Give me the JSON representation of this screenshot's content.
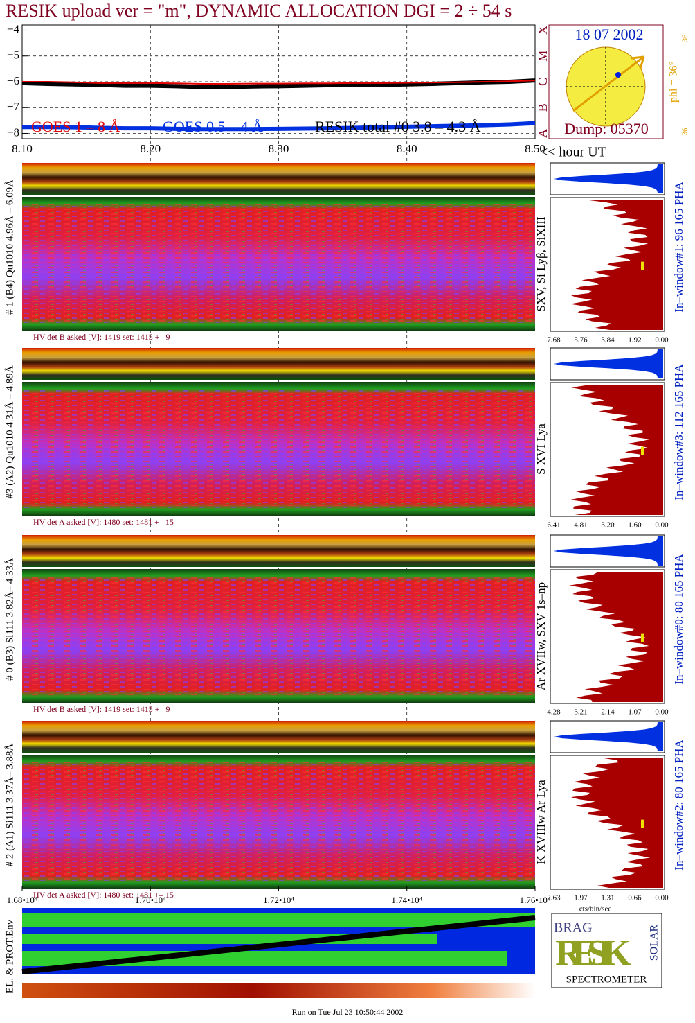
{
  "chart_data": [
    {
      "type": "line",
      "title": "RESIK upload ver = \"m\", DYNAMIC ALLOCATION  DGI =   2 ÷  54 s",
      "xlabel": "<< hour UT",
      "x": [
        8.1,
        8.12,
        8.14,
        8.16,
        8.18,
        8.2,
        8.22,
        8.24,
        8.26,
        8.28,
        8.3,
        8.32,
        8.34,
        8.36,
        8.38,
        8.4,
        8.42,
        8.44,
        8.46,
        8.48,
        8.5
      ],
      "xlim": [
        8.1,
        8.5
      ],
      "xticks": [
        {
          "value": 8.1,
          "label": "8.10"
        },
        {
          "value": 8.2,
          "label": "8.20"
        },
        {
          "value": 8.3,
          "label": "8.30"
        },
        {
          "value": 8.4,
          "label": "8.40"
        },
        {
          "value": 8.5,
          "label": "8.50"
        }
      ],
      "ylim": [
        -8.2,
        -3.8
      ],
      "yticks": [
        {
          "value": -4,
          "label": "−4"
        },
        {
          "value": -5,
          "label": "−5"
        },
        {
          "value": -6,
          "label": "−6"
        },
        {
          "value": -7,
          "label": "−7"
        },
        {
          "value": -8,
          "label": "−8"
        }
      ],
      "grid": true,
      "series": [
        {
          "name": "GOES 1 – 8 Å",
          "color": "#e00000",
          "values": [
            -6.0,
            -6.0,
            -6.02,
            -6.05,
            -6.05,
            -6.05,
            -6.06,
            -6.08,
            -6.08,
            -6.07,
            -6.07,
            -6.06,
            -6.06,
            -6.05,
            -6.05,
            -6.04,
            -6.03,
            -6.02,
            -6.0,
            -5.98,
            -5.95
          ]
        },
        {
          "name": "GOES 0.5 – 4 Å",
          "color": "#0030e0",
          "values": [
            -7.75,
            -7.75,
            -7.76,
            -7.78,
            -7.8,
            -7.8,
            -7.82,
            -7.83,
            -7.83,
            -7.83,
            -7.82,
            -7.81,
            -7.8,
            -7.78,
            -7.76,
            -7.74,
            -7.72,
            -7.7,
            -7.68,
            -7.65,
            -7.6
          ]
        },
        {
          "name": "RESIK total #0  3.8 – 4.3 Å",
          "color": "#000000",
          "values": [
            -6.05,
            -6.08,
            -6.1,
            -6.12,
            -6.15,
            -6.15,
            -6.17,
            -6.2,
            -6.2,
            -6.18,
            -6.17,
            -6.15,
            -6.13,
            -6.12,
            -6.12,
            -6.1,
            -6.08,
            -6.05,
            -6.02,
            -6.0,
            -5.95
          ]
        }
      ]
    },
    {
      "type": "strip",
      "ylabel": "EL. & PROT.Env",
      "xlim": [
        16800,
        17600
      ],
      "xticks": [
        {
          "value": 16800,
          "label": "1.68•10⁴"
        },
        {
          "value": 17000,
          "label": "1.70•10⁴"
        },
        {
          "value": 17200,
          "label": "1.72•10⁴"
        },
        {
          "value": 17400,
          "label": "1.74•10⁴"
        },
        {
          "value": 17600,
          "label": "1.76•10⁴"
        }
      ]
    }
  ],
  "sun": {
    "date": "18 07 2002",
    "dump": "Dump: 05370",
    "phi": "phi = 36°",
    "phi_top": "36",
    "phi_bottom": "36",
    "classes": [
      "A",
      "B",
      "C",
      "M",
      "X"
    ]
  },
  "panels": [
    {
      "label": "# 1 (B4) Qu1010 4.96Å – 6.09Å",
      "lines": "SXV, Si Lyβ, SiXIII",
      "hv": "HV det B asked [V]:  1419 set:  1415  +–    9",
      "ticks": [
        "7.68",
        "5.76",
        "3.84",
        "1.92",
        "0.00"
      ],
      "window": "In–window#1:   96 165  PHA"
    },
    {
      "label": "#3 (A2) Qu1010  4.31Å – 4.89Å",
      "lines": "S XVI Lya",
      "hv": "HV det A asked [V]:  1480 set:  1481  +–   15",
      "ticks": [
        "6.41",
        "4.81",
        "3.20",
        "1.60",
        "0.00"
      ],
      "window": "In–window#3:  112 165  PHA"
    },
    {
      "label": "# 0 (B3) Si111  3.82Å– 4.33Å",
      "lines": "Ar XVIIw, SXV 1s–np",
      "hv": "HV det B asked [V]:  1419 set:  1415  +–    9",
      "ticks": [
        "4.28",
        "3.21",
        "2.14",
        "1.07",
        "0.00"
      ],
      "window": "In–window#0:   80 165  PHA"
    },
    {
      "label": "# 2 (A1) Si111  3.37Å– 3.88Å",
      "lines": "K XVIIIw  Ar Lya",
      "hv": "HV det A asked [V]:  1480 set:  1481  +–   15",
      "ticks": [
        "2.63",
        "1.97",
        "1.31",
        "0.66",
        "0.00"
      ],
      "window": "In–window#2:   80 165  PHA"
    }
  ],
  "pha_axis_label": "cts/bin/sec",
  "logo": {
    "top": "BRAG",
    "main": "RESIK",
    "side": "SOLAR",
    "bottom": "SPECTROMETER"
  },
  "footer": "Run on Tue Jul 23 10:50:44 2002"
}
